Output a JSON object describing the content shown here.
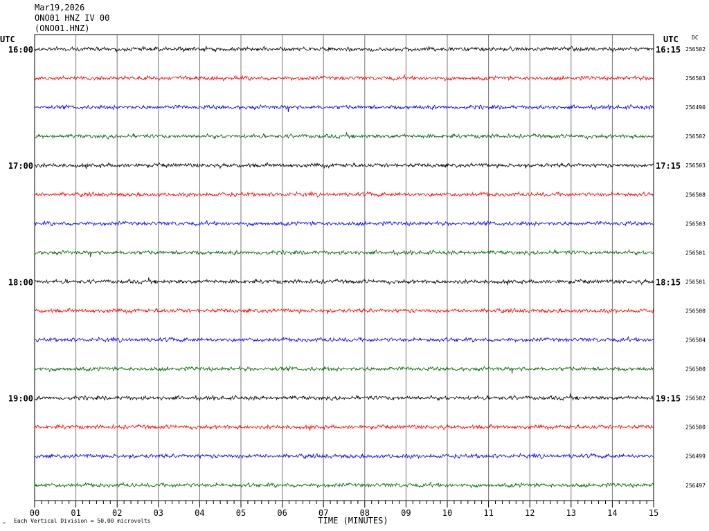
{
  "header": {
    "date": "Mar19,2026",
    "station": "ONO01 HNZ IV 00",
    "channel": "(ONO01.HNZ)"
  },
  "footer": {
    "scale_text": "Each Vertical Division =   50.00 microvolts"
  },
  "chart_data": {
    "type": "line",
    "title": "",
    "xlabel": "TIME (MINUTES)",
    "ylabel": "",
    "xlim": [
      0,
      15
    ],
    "x_ticks": [
      "00",
      "01",
      "02",
      "03",
      "04",
      "05",
      "06",
      "07",
      "08",
      "09",
      "10",
      "11",
      "12",
      "13",
      "14",
      "15"
    ],
    "left_axis_label": "UTC",
    "right_axis_label": "UTC",
    "dc_label": "DC",
    "left_hour_labels": [
      {
        "trace": 0,
        "label": "16:00"
      },
      {
        "trace": 4,
        "label": "17:00"
      },
      {
        "trace": 8,
        "label": "18:00"
      },
      {
        "trace": 12,
        "label": "19:00"
      }
    ],
    "right_time_labels": [
      {
        "trace": 0,
        "label": "16:15"
      },
      {
        "trace": 4,
        "label": "17:15"
      },
      {
        "trace": 8,
        "label": "18:15"
      },
      {
        "trace": 12,
        "label": "19:15"
      }
    ],
    "trace_colors": [
      "#000000",
      "#ff0000",
      "#0000ff",
      "#006600"
    ],
    "dc_values": [
      "256502",
      "256503",
      "256490",
      "256502",
      "256503",
      "256508",
      "256503",
      "256501",
      "256501",
      "256500",
      "256504",
      "256500",
      "256502",
      "256500",
      "256499",
      "256497"
    ],
    "minutes_per_trace": 15
  }
}
